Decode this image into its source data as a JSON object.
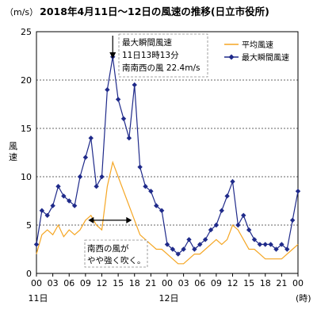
{
  "title": "2018年4月11日～12日の風速の推移(日立市役所)",
  "unit_label": "（m/s）",
  "chart_data": {
    "type": "line",
    "title": "2018年4月11日～12日の風速の推移(日立市役所)",
    "ylabel": "風速",
    "ylim": [
      0,
      25
    ],
    "yticks": [
      0,
      5,
      10,
      15,
      20,
      25
    ],
    "xticks": [
      "00",
      "03",
      "06",
      "09",
      "12",
      "15",
      "18",
      "21",
      "00",
      "03",
      "06",
      "09",
      "12",
      "15",
      "18",
      "21",
      "00"
    ],
    "date_labels": [
      "11日",
      "12日"
    ],
    "x_unit": "(時)",
    "grid": "horizontal-dashed",
    "legend_position": "top-right",
    "series": [
      {
        "name": "平均風速",
        "color": "#f5a623",
        "marker": "none",
        "x_hours": [
          0,
          1,
          2,
          3,
          4,
          5,
          6,
          7,
          8,
          9,
          10,
          11,
          12,
          13,
          14,
          15,
          16,
          17,
          18,
          19,
          20,
          21,
          22,
          23,
          24,
          25,
          26,
          27,
          28,
          29,
          30,
          31,
          32,
          33,
          34,
          35,
          36,
          37,
          38,
          39,
          40,
          41,
          42,
          43,
          44,
          45,
          46,
          47,
          48
        ],
        "values": [
          2.0,
          4.0,
          4.5,
          4.0,
          5.0,
          3.8,
          4.5,
          4.0,
          4.5,
          5.5,
          6.0,
          5.0,
          4.5,
          9.0,
          11.5,
          10.0,
          8.5,
          7.0,
          5.5,
          4.0,
          3.5,
          3.0,
          2.5,
          2.5,
          2.0,
          1.5,
          1.0,
          1.0,
          1.5,
          2.0,
          2.0,
          2.5,
          3.0,
          3.5,
          3.0,
          3.5,
          5.0,
          4.5,
          3.5,
          2.5,
          2.5,
          2.0,
          1.5,
          1.5,
          1.5,
          1.5,
          2.0,
          2.5,
          3.0
        ]
      },
      {
        "name": "最大瞬間風速",
        "color": "#1f2a8a",
        "marker": "diamond",
        "x_hours": [
          0,
          1,
          2,
          3,
          4,
          5,
          6,
          7,
          8,
          9,
          10,
          11,
          12,
          13,
          14,
          15,
          16,
          17,
          18,
          19,
          20,
          21,
          22,
          23,
          24,
          25,
          26,
          27,
          28,
          29,
          30,
          31,
          32,
          33,
          34,
          35,
          36,
          37,
          38,
          39,
          40,
          41,
          42,
          43,
          44,
          45,
          46,
          47,
          48
        ],
        "values": [
          3.0,
          6.5,
          6.0,
          7.0,
          9.0,
          8.0,
          7.5,
          7.0,
          10.0,
          12.0,
          14.0,
          9.0,
          10.0,
          19.0,
          22.4,
          18.0,
          16.0,
          14.0,
          19.5,
          11.0,
          9.0,
          8.5,
          7.0,
          6.5,
          3.0,
          2.5,
          2.0,
          2.5,
          3.5,
          2.5,
          3.0,
          3.5,
          4.5,
          5.0,
          6.5,
          8.0,
          9.5,
          5.0,
          6.0,
          4.5,
          3.5,
          3.0,
          3.0,
          3.0,
          2.5,
          3.0,
          2.5,
          5.5,
          8.5
        ]
      }
    ],
    "annotations": [
      "最大瞬間風速",
      "11日13時13分",
      "南南西の風 22.4m/s",
      "南西の風が",
      "やや強く吹く。"
    ]
  }
}
